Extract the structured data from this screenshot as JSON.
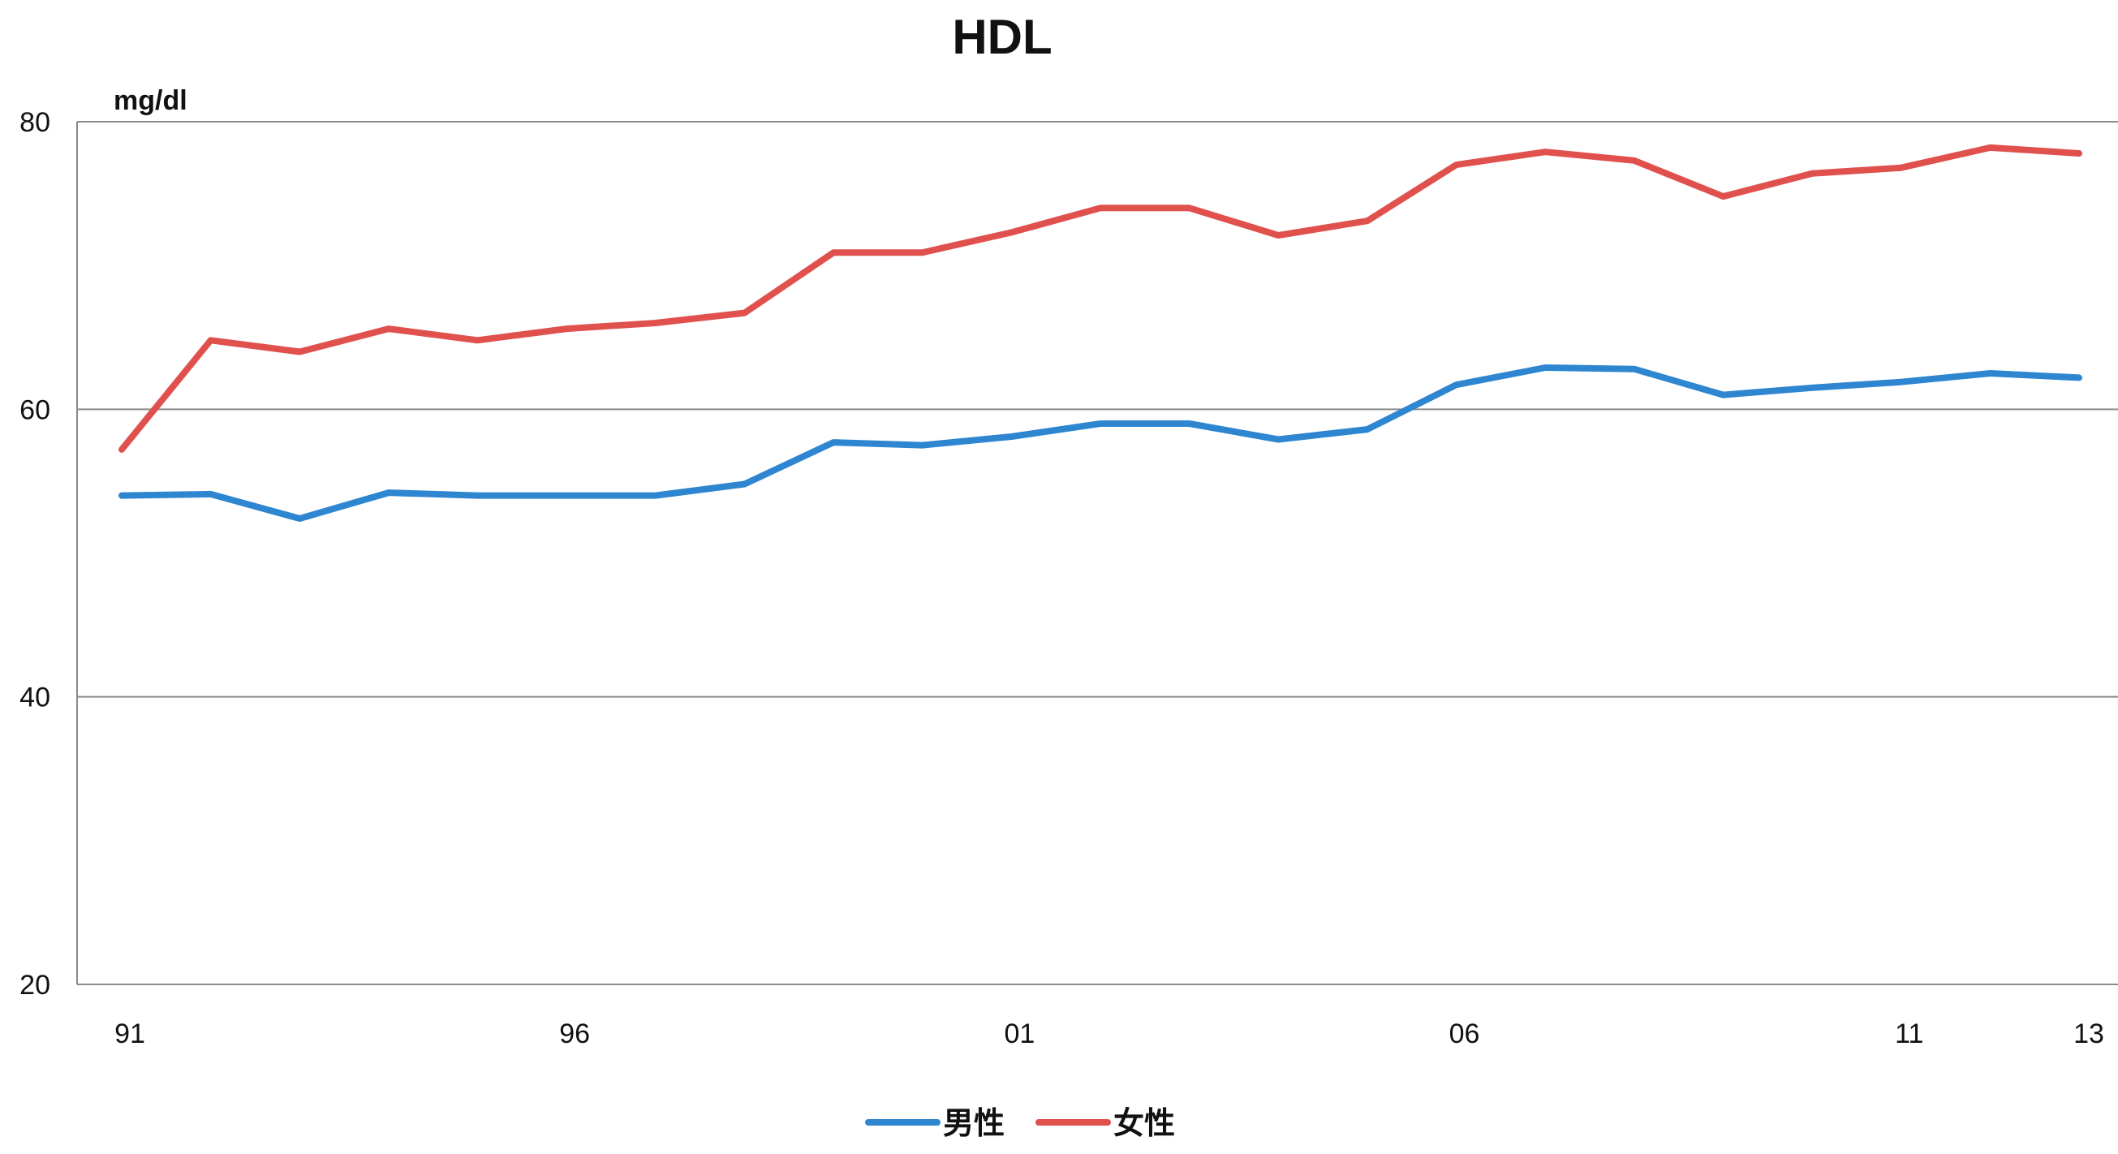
{
  "chart_data": {
    "type": "line",
    "title": "HDL",
    "unit_label": "mg/dl",
    "xlabel": "",
    "ylabel": "",
    "ylim": [
      20,
      80
    ],
    "yticks": [
      "80",
      "60",
      "40",
      "20"
    ],
    "ytick_values": [
      80,
      60,
      40,
      20
    ],
    "x_tick_labels": [
      "91",
      "96",
      "01",
      "06",
      "11",
      "13"
    ],
    "x_tick_indices": [
      0,
      5,
      10,
      15,
      20,
      22
    ],
    "x": [
      1991,
      1992,
      1993,
      1994,
      1995,
      1996,
      1997,
      1998,
      1999,
      2000,
      2001,
      2002,
      2003,
      2004,
      2005,
      2006,
      2007,
      2008,
      2009,
      2010,
      2011,
      2012,
      2013
    ],
    "grid": true,
    "legend_position": "bottom-center",
    "series": [
      {
        "name": "男性",
        "color": "#2e86d1",
        "values": [
          54.0,
          54.1,
          52.4,
          54.2,
          54.0,
          54.0,
          54.0,
          54.8,
          57.7,
          57.5,
          58.1,
          59.0,
          59.0,
          57.9,
          58.6,
          61.7,
          62.9,
          62.8,
          61.0,
          61.5,
          61.9,
          62.5,
          62.2
        ]
      },
      {
        "name": "女性",
        "color": "#e0514e",
        "values": [
          57.2,
          64.8,
          64.0,
          65.6,
          64.8,
          65.6,
          66.0,
          66.7,
          70.9,
          70.9,
          72.3,
          74.0,
          74.0,
          72.1,
          73.1,
          77.0,
          77.9,
          77.3,
          74.8,
          76.4,
          76.8,
          78.2,
          77.8
        ]
      }
    ]
  }
}
